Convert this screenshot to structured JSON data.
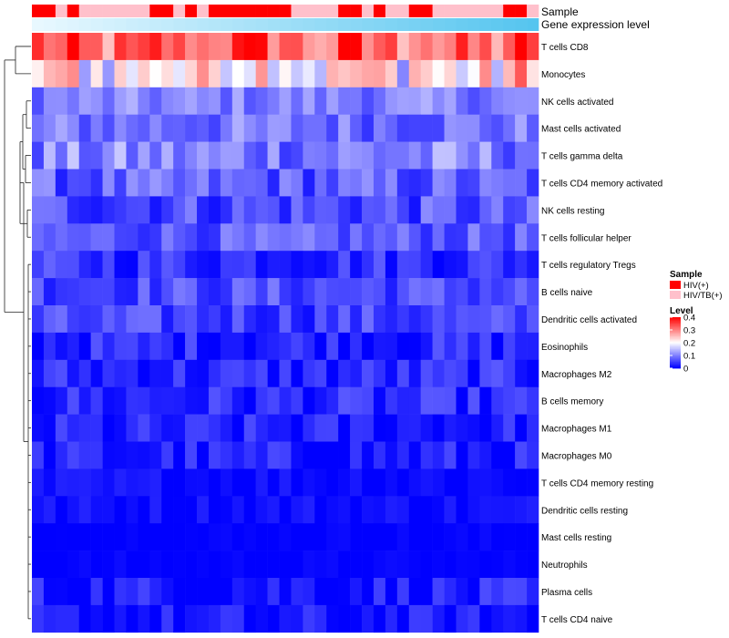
{
  "chart_data": {
    "type": "heatmap",
    "annotations": {
      "sample_label": "Sample",
      "expression_label": "Gene expression level"
    },
    "rows": [
      "T cells CD8",
      "Monocytes",
      "NK cells activated",
      "Mast cells activated",
      "T cells gamma delta",
      "T cells CD4 memory activated",
      "NK cells resting",
      "T cells follicular helper",
      "T cells regulatory  Tregs",
      "B cells naive",
      "Dendritic cells activated",
      "Eosinophils",
      "Macrophages M2",
      "B cells memory",
      "Macrophages M1",
      "Macrophages M0",
      "T cells CD4 memory resting",
      "Dendritic cells resting",
      "Mast cells resting",
      "Neutrophils",
      "Plasma cells",
      "T cells CD4 naive"
    ],
    "n_columns": 43,
    "value_range": [
      0,
      0.4
    ],
    "legend": {
      "sample_title": "Sample",
      "sample_entries": [
        {
          "label": "HIV(+)",
          "color": "#ff0000"
        },
        {
          "label": "HIV/TB(+)",
          "color": "#ffc0cb"
        }
      ],
      "level_title": "Level",
      "level_ticks": [
        "0.4",
        "0.3",
        "0.2",
        "0.1",
        "0"
      ],
      "level_tick_values": [
        0.4,
        0.3,
        0.2,
        0.1,
        0
      ]
    },
    "sample_groups": [
      1,
      1,
      0,
      1,
      0,
      0,
      0,
      0,
      0,
      0,
      1,
      1,
      0,
      1,
      0,
      1,
      1,
      1,
      1,
      1,
      1,
      1,
      0,
      0,
      0,
      0,
      1,
      1,
      0,
      1,
      0,
      0,
      1,
      1,
      0,
      0,
      0,
      0,
      0,
      0,
      1,
      1,
      0
    ],
    "row_profiles": [
      {
        "base": 0.3,
        "spread": 0.08
      },
      {
        "base": 0.2,
        "spread": 0.1
      },
      {
        "base": 0.1,
        "spread": 0.04
      },
      {
        "base": 0.09,
        "spread": 0.05
      },
      {
        "base": 0.1,
        "spread": 0.06
      },
      {
        "base": 0.07,
        "spread": 0.05
      },
      {
        "base": 0.06,
        "spread": 0.05
      },
      {
        "base": 0.07,
        "spread": 0.04
      },
      {
        "base": 0.04,
        "spread": 0.04
      },
      {
        "base": 0.06,
        "spread": 0.04
      },
      {
        "base": 0.05,
        "spread": 0.04
      },
      {
        "base": 0.03,
        "spread": 0.04
      },
      {
        "base": 0.03,
        "spread": 0.04
      },
      {
        "base": 0.03,
        "spread": 0.04
      },
      {
        "base": 0.02,
        "spread": 0.04
      },
      {
        "base": 0.02,
        "spread": 0.04
      },
      {
        "base": 0.01,
        "spread": 0.02
      },
      {
        "base": 0.01,
        "spread": 0.02
      },
      {
        "base": 0.0,
        "spread": 0.01
      },
      {
        "base": 0.0,
        "spread": 0.01
      },
      {
        "base": 0.02,
        "spread": 0.04
      },
      {
        "base": 0.01,
        "spread": 0.04
      }
    ],
    "colors": {
      "low": "#0000ff",
      "mid": "#ffffff",
      "high": "#ff0000",
      "hiv": "#ff0000",
      "hivtb": "#ffc0cb",
      "expression_low": "#e8f8ff",
      "expression_high": "#55c5ef"
    }
  }
}
